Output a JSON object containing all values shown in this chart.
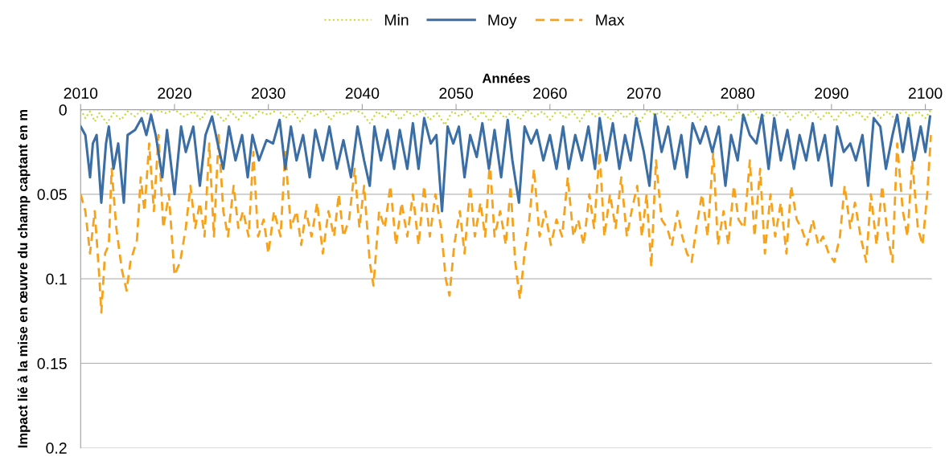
{
  "chart_data": {
    "type": "line",
    "xlabel": "Années",
    "ylabel": "Impact lié à la mise en œuvre du champ captant en m",
    "xlim": [
      2010,
      2100.7
    ],
    "xticks": [
      2010,
      2020,
      2030,
      2040,
      2050,
      2060,
      2070,
      2080,
      2090,
      2100
    ],
    "ylim": [
      0.2,
      0
    ],
    "yticks": [
      0,
      0.05,
      0.1,
      0.15,
      0.2
    ],
    "grid": "y",
    "legend": "top",
    "marker": "none",
    "series": [
      {
        "name": "Min",
        "color": "#c5d932",
        "line_style": "dotted",
        "x": [
          2010.0,
          2010.5,
          2011.0,
          2011.5,
          2012.0,
          2012.8,
          2013.5,
          2014.3,
          2015.0,
          2015.8,
          2016.5,
          2017.3,
          2018.0,
          2019.0,
          2020.0,
          2021.0,
          2022.0,
          2022.8,
          2023.5,
          2024.5,
          2025.3,
          2026.0,
          2026.8,
          2027.5,
          2028.3,
          2029.0,
          2030.0,
          2031.0,
          2031.8,
          2032.6,
          2033.4,
          2034.2,
          2035.0,
          2035.8,
          2036.6,
          2037.4,
          2038.2,
          2039.0,
          2040.0,
          2040.8,
          2041.6,
          2042.4,
          2043.2,
          2044.0,
          2044.8,
          2045.6,
          2046.4,
          2047.2,
          2048.0,
          2048.8,
          2049.6,
          2050.4,
          2051.2,
          2052.0,
          2052.8,
          2053.6,
          2054.4,
          2055.2,
          2056.0,
          2056.8,
          2057.6,
          2058.4,
          2059.2,
          2060.0,
          2060.8,
          2061.6,
          2062.4,
          2063.2,
          2064.0,
          2064.8,
          2065.6,
          2066.4,
          2067.2,
          2068.0,
          2068.8,
          2069.6,
          2070.4,
          2071.2,
          2072.0,
          2072.8,
          2073.6,
          2074.4,
          2075.2,
          2076.0,
          2076.8,
          2077.6,
          2078.4,
          2079.2,
          2080.0,
          2080.8,
          2081.6,
          2082.4,
          2083.2,
          2084.0,
          2084.8,
          2085.6,
          2086.4,
          2087.2,
          2088.0,
          2088.8,
          2089.6,
          2090.4,
          2091.2,
          2092.0,
          2092.8,
          2093.6,
          2094.4,
          2095.2,
          2096.0,
          2096.8,
          2097.6,
          2098.4,
          2099.2,
          2100.0,
          2100.6
        ],
        "values": [
          0.0,
          0.005,
          0.001,
          0.007,
          0.002,
          0.008,
          0.002,
          0.006,
          0.001,
          0.004,
          0.0,
          0.003,
          0.0,
          0.002,
          0.0,
          0.004,
          0.001,
          0.006,
          0.0,
          0.002,
          0.007,
          0.001,
          0.006,
          0.001,
          0.005,
          0.001,
          0.003,
          0.0,
          0.005,
          0.001,
          0.007,
          0.001,
          0.004,
          0.0,
          0.006,
          0.001,
          0.003,
          0.0,
          0.002,
          0.008,
          0.001,
          0.005,
          0.0,
          0.006,
          0.001,
          0.004,
          0.0,
          0.006,
          0.002,
          0.009,
          0.001,
          0.004,
          0.0,
          0.006,
          0.001,
          0.007,
          0.0,
          0.005,
          0.001,
          0.006,
          0.0,
          0.004,
          0.001,
          0.006,
          0.0,
          0.005,
          0.001,
          0.007,
          0.0,
          0.004,
          0.001,
          0.006,
          0.0,
          0.005,
          0.001,
          0.007,
          0.0,
          0.003,
          0.001,
          0.006,
          0.0,
          0.005,
          0.001,
          0.006,
          0.0,
          0.004,
          0.001,
          0.007,
          0.001,
          0.005,
          0.0,
          0.006,
          0.001,
          0.004,
          0.0,
          0.006,
          0.001,
          0.005,
          0.0,
          0.006,
          0.001,
          0.007,
          0.0,
          0.004,
          0.001,
          0.006,
          0.0,
          0.005,
          0.001,
          0.006,
          0.0,
          0.004,
          0.001,
          0.005,
          0.0
        ]
      },
      {
        "name": "Moy",
        "color": "#3a6ea5",
        "line_style": "solid",
        "x": [
          2010.0,
          2010.5,
          2011.0,
          2011.3,
          2011.7,
          2012.2,
          2012.7,
          2013.0,
          2013.5,
          2014.0,
          2014.6,
          2015.0,
          2015.8,
          2016.5,
          2017.0,
          2017.5,
          2018.0,
          2018.7,
          2019.2,
          2020.0,
          2020.7,
          2021.2,
          2022.0,
          2022.7,
          2023.3,
          2024.0,
          2024.6,
          2025.2,
          2025.8,
          2026.5,
          2027.2,
          2027.8,
          2028.3,
          2029.0,
          2029.8,
          2030.5,
          2031.2,
          2031.8,
          2032.4,
          2033.0,
          2033.7,
          2034.4,
          2035.0,
          2035.8,
          2036.5,
          2037.3,
          2038.0,
          2038.8,
          2039.5,
          2040.2,
          2040.8,
          2041.3,
          2042.0,
          2042.7,
          2043.4,
          2044.0,
          2044.8,
          2045.4,
          2046.0,
          2046.6,
          2047.3,
          2047.9,
          2048.5,
          2049.1,
          2049.7,
          2050.3,
          2050.9,
          2051.5,
          2052.2,
          2052.8,
          2053.5,
          2054.1,
          2054.8,
          2055.5,
          2056.0,
          2056.7,
          2057.3,
          2058.0,
          2058.6,
          2059.3,
          2060.0,
          2060.7,
          2061.4,
          2062.0,
          2062.7,
          2063.4,
          2064.1,
          2064.8,
          2065.3,
          2066.0,
          2066.7,
          2067.4,
          2068.0,
          2068.6,
          2069.2,
          2070.0,
          2070.6,
          2071.2,
          2071.9,
          2072.6,
          2073.3,
          2074.0,
          2074.6,
          2075.2,
          2076.0,
          2076.6,
          2077.3,
          2078.0,
          2078.7,
          2079.3,
          2080.0,
          2080.6,
          2081.3,
          2082.0,
          2082.6,
          2083.3,
          2083.9,
          2084.6,
          2085.3,
          2086.0,
          2086.6,
          2087.3,
          2088.0,
          2088.6,
          2089.3,
          2090.0,
          2090.6,
          2091.3,
          2092.0,
          2092.6,
          2093.3,
          2093.9,
          2094.5,
          2095.2,
          2095.8,
          2096.5,
          2097.0,
          2097.6,
          2098.2,
          2098.8,
          2099.5,
          2100.0,
          2100.5
        ],
        "values": [
          0.01,
          0.015,
          0.04,
          0.02,
          0.015,
          0.055,
          0.02,
          0.01,
          0.035,
          0.02,
          0.055,
          0.015,
          0.012,
          0.005,
          0.015,
          0.003,
          0.015,
          0.04,
          0.012,
          0.05,
          0.01,
          0.025,
          0.01,
          0.045,
          0.015,
          0.004,
          0.02,
          0.035,
          0.01,
          0.03,
          0.015,
          0.04,
          0.015,
          0.03,
          0.018,
          0.02,
          0.006,
          0.035,
          0.01,
          0.03,
          0.015,
          0.04,
          0.012,
          0.03,
          0.01,
          0.035,
          0.018,
          0.04,
          0.01,
          0.03,
          0.045,
          0.01,
          0.03,
          0.012,
          0.035,
          0.012,
          0.035,
          0.008,
          0.035,
          0.005,
          0.02,
          0.015,
          0.06,
          0.01,
          0.02,
          0.01,
          0.04,
          0.015,
          0.028,
          0.008,
          0.035,
          0.012,
          0.04,
          0.006,
          0.03,
          0.055,
          0.01,
          0.02,
          0.012,
          0.03,
          0.015,
          0.035,
          0.01,
          0.035,
          0.015,
          0.03,
          0.01,
          0.035,
          0.005,
          0.03,
          0.008,
          0.035,
          0.015,
          0.03,
          0.005,
          0.025,
          0.045,
          0.003,
          0.025,
          0.01,
          0.035,
          0.015,
          0.04,
          0.008,
          0.02,
          0.01,
          0.025,
          0.01,
          0.045,
          0.015,
          0.03,
          0.003,
          0.015,
          0.02,
          0.003,
          0.035,
          0.005,
          0.03,
          0.012,
          0.035,
          0.015,
          0.03,
          0.008,
          0.03,
          0.015,
          0.045,
          0.01,
          0.025,
          0.02,
          0.03,
          0.015,
          0.045,
          0.005,
          0.01,
          0.035,
          0.015,
          0.003,
          0.025,
          0.005,
          0.03,
          0.01,
          0.025,
          0.004
        ]
      },
      {
        "name": "Max",
        "color": "#f7a21b",
        "line_style": "dashed",
        "x": [
          2010.0,
          2010.5,
          2011.0,
          2011.5,
          2012.0,
          2012.2,
          2012.6,
          2013.0,
          2013.3,
          2013.8,
          2014.4,
          2014.9,
          2015.3,
          2016.0,
          2016.4,
          2016.8,
          2017.3,
          2017.8,
          2018.3,
          2018.8,
          2019.4,
          2020.0,
          2020.6,
          2021.2,
          2021.7,
          2022.2,
          2022.7,
          2023.2,
          2023.7,
          2024.2,
          2024.7,
          2025.2,
          2025.7,
          2026.3,
          2026.8,
          2027.3,
          2027.9,
          2028.4,
          2028.9,
          2029.5,
          2030.0,
          2030.6,
          2031.3,
          2031.8,
          2032.4,
          2033.0,
          2033.5,
          2034.0,
          2034.6,
          2035.2,
          2035.8,
          2036.4,
          2037.0,
          2037.5,
          2038.0,
          2038.6,
          2039.2,
          2039.7,
          2040.2,
          2040.8,
          2041.2,
          2041.8,
          2042.4,
          2043.0,
          2043.6,
          2044.2,
          2044.8,
          2045.4,
          2046.0,
          2046.6,
          2047.2,
          2047.8,
          2048.4,
          2048.9,
          2049.3,
          2049.8,
          2050.4,
          2050.9,
          2051.5,
          2052.0,
          2052.6,
          2053.1,
          2053.6,
          2054.1,
          2054.7,
          2055.3,
          2055.8,
          2056.3,
          2056.8,
          2057.3,
          2057.8,
          2058.3,
          2058.9,
          2059.5,
          2060.1,
          2060.7,
          2061.3,
          2061.9,
          2062.5,
          2063.0,
          2063.6,
          2064.2,
          2064.7,
          2065.3,
          2065.8,
          2066.4,
          2067.0,
          2067.6,
          2068.2,
          2068.7,
          2069.3,
          2069.8,
          2070.3,
          2070.8,
          2071.3,
          2071.9,
          2072.5,
          2073.0,
          2073.6,
          2074.1,
          2074.6,
          2075.1,
          2075.6,
          2076.2,
          2076.8,
          2077.4,
          2077.9,
          2078.5,
          2079.0,
          2079.6,
          2080.1,
          2080.7,
          2081.3,
          2081.8,
          2082.4,
          2082.9,
          2083.5,
          2084.0,
          2084.6,
          2085.2,
          2085.7,
          2086.3,
          2086.8,
          2087.4,
          2088.0,
          2088.6,
          2089.1,
          2089.7,
          2090.3,
          2090.9,
          2091.4,
          2092.0,
          2092.5,
          2093.1,
          2093.7,
          2094.2,
          2094.8,
          2095.4,
          2096.0,
          2096.5,
          2097.0,
          2097.6,
          2098.1,
          2098.6,
          2099.2,
          2099.7,
          2100.2,
          2100.6
        ],
        "values": [
          0.05,
          0.06,
          0.085,
          0.06,
          0.1,
          0.12,
          0.085,
          0.08,
          0.035,
          0.07,
          0.095,
          0.107,
          0.09,
          0.077,
          0.04,
          0.06,
          0.02,
          0.06,
          0.015,
          0.07,
          0.05,
          0.098,
          0.09,
          0.07,
          0.045,
          0.07,
          0.055,
          0.075,
          0.02,
          0.075,
          0.015,
          0.06,
          0.075,
          0.045,
          0.07,
          0.06,
          0.075,
          0.025,
          0.075,
          0.065,
          0.085,
          0.06,
          0.075,
          0.025,
          0.07,
          0.06,
          0.08,
          0.06,
          0.075,
          0.055,
          0.085,
          0.06,
          0.075,
          0.05,
          0.075,
          0.065,
          0.035,
          0.07,
          0.045,
          0.09,
          0.104,
          0.06,
          0.07,
          0.045,
          0.08,
          0.055,
          0.075,
          0.05,
          0.08,
          0.045,
          0.075,
          0.05,
          0.07,
          0.1,
          0.11,
          0.08,
          0.06,
          0.085,
          0.045,
          0.075,
          0.055,
          0.075,
          0.03,
          0.075,
          0.06,
          0.08,
          0.045,
          0.09,
          0.112,
          0.085,
          0.065,
          0.035,
          0.075,
          0.06,
          0.08,
          0.065,
          0.075,
          0.04,
          0.075,
          0.065,
          0.08,
          0.05,
          0.07,
          0.025,
          0.075,
          0.05,
          0.07,
          0.04,
          0.075,
          0.06,
          0.045,
          0.075,
          0.05,
          0.093,
          0.03,
          0.065,
          0.07,
          0.08,
          0.06,
          0.075,
          0.085,
          0.09,
          0.07,
          0.05,
          0.075,
          0.025,
          0.08,
          0.06,
          0.08,
          0.045,
          0.065,
          0.07,
          0.03,
          0.075,
          0.035,
          0.085,
          0.05,
          0.075,
          0.055,
          0.085,
          0.045,
          0.065,
          0.07,
          0.08,
          0.065,
          0.08,
          0.075,
          0.085,
          0.09,
          0.075,
          0.045,
          0.07,
          0.055,
          0.075,
          0.09,
          0.05,
          0.08,
          0.045,
          0.075,
          0.09,
          0.02,
          0.06,
          0.075,
          0.03,
          0.07,
          0.08,
          0.05,
          0.015
        ]
      }
    ]
  }
}
